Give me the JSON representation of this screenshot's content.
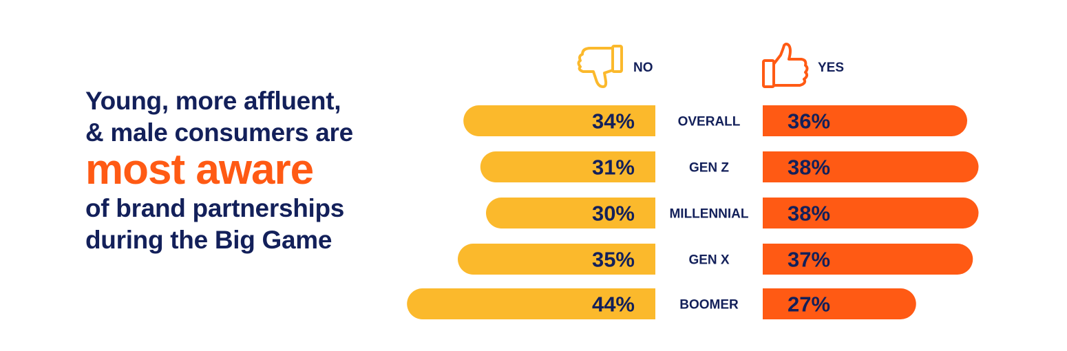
{
  "headline": {
    "line1": "Young, more affluent,",
    "line2": "& male consumers are",
    "accent": "most aware",
    "line3": "of brand partnerships",
    "line4": "during the Big Game"
  },
  "colors": {
    "no": "#fbb92c",
    "yes": "#ff5a14",
    "text": "#13205a",
    "no_icon": "#fbb92c",
    "yes_icon": "#ff5a14"
  },
  "legend": {
    "no": {
      "label": "NO",
      "icon": "thumbs-down-icon"
    },
    "yes": {
      "label": "YES",
      "icon": "thumbs-up-icon"
    }
  },
  "chart_data": {
    "type": "bar",
    "categories": [
      "OVERALL",
      "GEN Z",
      "MILLENNIAL",
      "GEN X",
      "BOOMER"
    ],
    "series": [
      {
        "name": "NO",
        "values": [
          34,
          31,
          30,
          35,
          44
        ]
      },
      {
        "name": "YES",
        "values": [
          36,
          38,
          38,
          37,
          27
        ]
      }
    ],
    "value_labels": {
      "NO": [
        "34%",
        "31%",
        "30%",
        "35%",
        "44%"
      ],
      "YES": [
        "36%",
        "38%",
        "38%",
        "37%",
        "27%"
      ]
    }
  }
}
